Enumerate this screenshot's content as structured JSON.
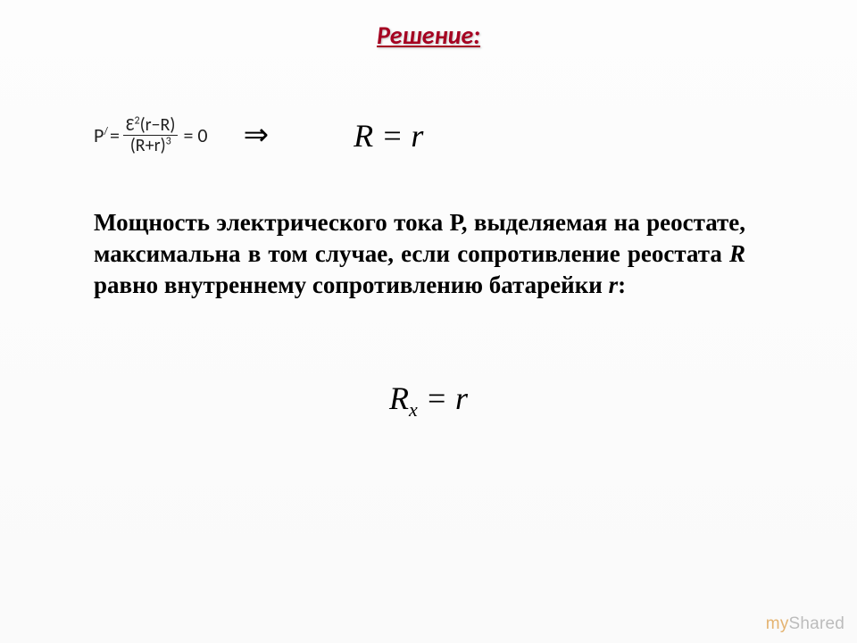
{
  "title": "Решение:",
  "equation1": {
    "lhs_symbol": "P",
    "lhs_prime": "/",
    "equals1": " = ",
    "frac_num_pre": "Ɛ",
    "frac_num_exp1": "2",
    "frac_num_paren": "(r−R)",
    "frac_den_pre": "(R+r)",
    "frac_den_exp": "3",
    "rhs": " = 0"
  },
  "arrow": "⇒",
  "equation2": "R = r",
  "body_text_parts": {
    "p1": "Мощность электрического тока  Р, выделяемая на реостате, максимальна в том случае, если сопротивление реостата ",
    "var_R": "R",
    "p2": " равно внутреннему сопротивлению батарейки  ",
    "var_r": "r",
    "p3": ":"
  },
  "equation_final": {
    "R": "R",
    "sub": "x",
    "rest": " = r"
  },
  "watermark": {
    "pre": "",
    "brand": "my",
    "post": "Shared"
  },
  "colors": {
    "title": "#a50021",
    "text": "#000000",
    "bg_top": "#fdfdfd",
    "bg_bottom": "#fafafa"
  },
  "fontsizes": {
    "title": 28,
    "body": 27,
    "eq_large": 36,
    "eq_small": 22
  }
}
